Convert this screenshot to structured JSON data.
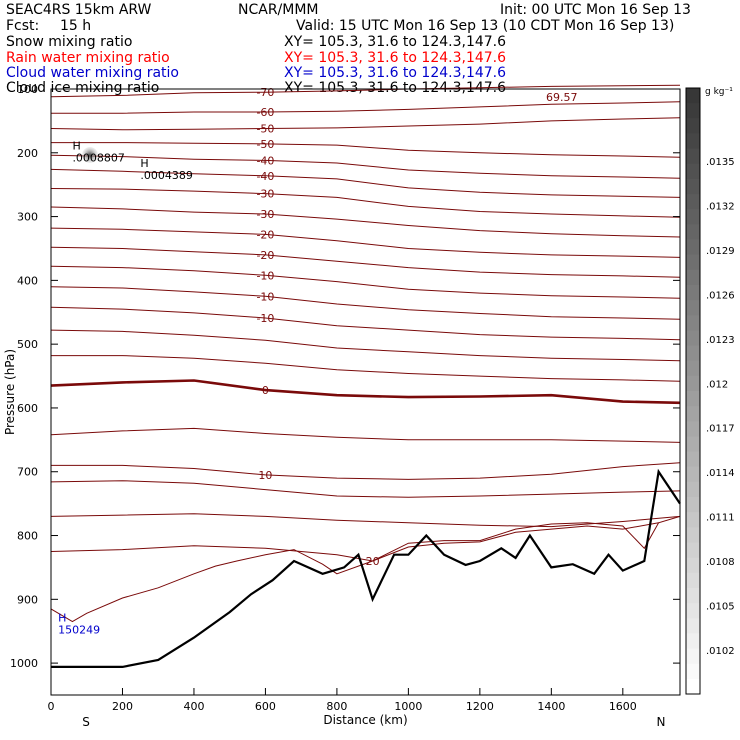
{
  "header": {
    "model": "SEAC4RS 15km ARW",
    "center": "NCAR/MMM",
    "init": "Init: 00 UTC Mon 16 Sep 13",
    "fcst_label": "Fcst:",
    "fcst_value": "15 h",
    "valid": "Valid: 15 UTC Mon 16 Sep 13 (10 CDT Mon 16 Sep 13)"
  },
  "fields": [
    {
      "name": "Snow mixing ratio",
      "xy": "XY= 105.3, 31.6 to 124.3,147.6",
      "color": "#000000"
    },
    {
      "name": "Rain water mixing ratio",
      "xy": "XY= 105.3, 31.6 to 124.3,147.6",
      "color": "#ff0000"
    },
    {
      "name": "Cloud water mixing ratio",
      "xy": "XY= 105.3, 31.6 to 124.3,147.6",
      "color": "#0000cc"
    },
    {
      "name": "Cloud ice mixing ratio",
      "xy": "XY= 105.3, 31.6 to 124.3,147.6",
      "color": "#000000"
    }
  ],
  "colorbar": {
    "unit": "g kg⁻¹",
    "ticks": [
      ".0135",
      ".0132",
      ".0129",
      ".0126",
      ".0123",
      ".012",
      ".0117",
      ".0114",
      ".0111",
      ".0108",
      ".0105",
      ".0102"
    ]
  },
  "chart_data": {
    "type": "line",
    "title": "",
    "xlabel": "Distance (km)",
    "ylabel": "Pressure (hPa)",
    "xlim": [
      0,
      1760
    ],
    "ylim": [
      1050,
      100
    ],
    "xticks": [
      0,
      200,
      400,
      600,
      800,
      1000,
      1200,
      1400,
      1600
    ],
    "yticks": [
      100,
      200,
      300,
      400,
      500,
      600,
      700,
      800,
      900,
      1000
    ],
    "x_end_labels": {
      "left": "S",
      "right": "N"
    },
    "isotherm_color": "#7a0a0a",
    "terrain_color": "#000000",
    "isotherms": [
      {
        "label": "-70",
        "points": [
          [
            0,
            112
          ],
          [
            200,
            110
          ],
          [
            400,
            106
          ],
          [
            600,
            105
          ],
          [
            800,
            103
          ],
          [
            1000,
            100
          ],
          [
            1200,
            98
          ],
          [
            1400,
            96
          ],
          [
            1600,
            95
          ],
          [
            1760,
            94
          ]
        ]
      },
      {
        "label": "-60",
        "points": [
          [
            0,
            138
          ],
          [
            200,
            138
          ],
          [
            400,
            136
          ],
          [
            600,
            136
          ],
          [
            800,
            135
          ],
          [
            1000,
            132
          ],
          [
            1200,
            128
          ],
          [
            1400,
            124
          ],
          [
            1600,
            122
          ],
          [
            1760,
            120
          ]
        ]
      },
      {
        "label": "-50",
        "points": [
          [
            0,
            162
          ],
          [
            200,
            164
          ],
          [
            400,
            163
          ],
          [
            600,
            162
          ],
          [
            800,
            161
          ],
          [
            1000,
            158
          ],
          [
            1200,
            155
          ],
          [
            1400,
            150
          ],
          [
            1600,
            147
          ],
          [
            1760,
            145
          ]
        ]
      },
      {
        "label": "-50",
        "points": [
          [
            0,
            184
          ],
          [
            200,
            184
          ],
          [
            400,
            185
          ],
          [
            600,
            186
          ],
          [
            800,
            188
          ],
          [
            1000,
            196
          ],
          [
            1200,
            200
          ],
          [
            1400,
            203
          ],
          [
            1600,
            205
          ],
          [
            1760,
            207
          ]
        ]
      },
      {
        "label": "-40",
        "points": [
          [
            0,
            204
          ],
          [
            200,
            206
          ],
          [
            400,
            210
          ],
          [
            600,
            212
          ],
          [
            800,
            216
          ],
          [
            1000,
            227
          ],
          [
            1200,
            232
          ],
          [
            1400,
            236
          ],
          [
            1600,
            238
          ],
          [
            1760,
            240
          ]
        ]
      },
      {
        "label": "-40",
        "points": [
          [
            0,
            226
          ],
          [
            200,
            229
          ],
          [
            400,
            233
          ],
          [
            600,
            236
          ],
          [
            800,
            241
          ],
          [
            1000,
            255
          ],
          [
            1200,
            262
          ],
          [
            1400,
            266
          ],
          [
            1600,
            268
          ],
          [
            1760,
            270
          ]
        ]
      },
      {
        "label": "-30",
        "points": [
          [
            0,
            256
          ],
          [
            200,
            257
          ],
          [
            400,
            260
          ],
          [
            600,
            264
          ],
          [
            800,
            270
          ],
          [
            1000,
            284
          ],
          [
            1200,
            292
          ],
          [
            1400,
            296
          ],
          [
            1600,
            299
          ],
          [
            1760,
            301
          ]
        ]
      },
      {
        "label": "-30",
        "points": [
          [
            0,
            285
          ],
          [
            200,
            288
          ],
          [
            400,
            293
          ],
          [
            600,
            296
          ],
          [
            800,
            304
          ],
          [
            1000,
            314
          ],
          [
            1200,
            322
          ],
          [
            1400,
            327
          ],
          [
            1600,
            330
          ],
          [
            1760,
            332
          ]
        ]
      },
      {
        "label": "-20",
        "points": [
          [
            0,
            318
          ],
          [
            200,
            320
          ],
          [
            400,
            324
          ],
          [
            600,
            328
          ],
          [
            800,
            338
          ],
          [
            1000,
            350
          ],
          [
            1200,
            356
          ],
          [
            1400,
            360
          ],
          [
            1600,
            362
          ],
          [
            1760,
            364
          ]
        ]
      },
      {
        "label": "-20",
        "points": [
          [
            0,
            348
          ],
          [
            200,
            350
          ],
          [
            400,
            355
          ],
          [
            600,
            360
          ],
          [
            800,
            370
          ],
          [
            1000,
            380
          ],
          [
            1200,
            387
          ],
          [
            1400,
            391
          ],
          [
            1600,
            393
          ],
          [
            1760,
            395
          ]
        ]
      },
      {
        "label": "-10",
        "points": [
          [
            0,
            378
          ],
          [
            200,
            380
          ],
          [
            400,
            385
          ],
          [
            600,
            392
          ],
          [
            800,
            402
          ],
          [
            1000,
            414
          ],
          [
            1200,
            420
          ],
          [
            1400,
            424
          ],
          [
            1600,
            426
          ],
          [
            1760,
            428
          ]
        ]
      },
      {
        "label": "-10",
        "points": [
          [
            0,
            410
          ],
          [
            200,
            412
          ],
          [
            400,
            418
          ],
          [
            600,
            425
          ],
          [
            800,
            437
          ],
          [
            1000,
            446
          ],
          [
            1200,
            452
          ],
          [
            1400,
            457
          ],
          [
            1600,
            459
          ],
          [
            1760,
            461
          ]
        ]
      },
      {
        "label": "-10",
        "points": [
          [
            0,
            442
          ],
          [
            200,
            445
          ],
          [
            400,
            451
          ],
          [
            600,
            459
          ],
          [
            800,
            471
          ],
          [
            1000,
            478
          ],
          [
            1200,
            485
          ],
          [
            1400,
            489
          ],
          [
            1600,
            491
          ],
          [
            1760,
            493
          ]
        ]
      },
      {
        "label": "",
        "points": [
          [
            0,
            478
          ],
          [
            200,
            480
          ],
          [
            400,
            486
          ],
          [
            600,
            494
          ],
          [
            800,
            506
          ],
          [
            1000,
            512
          ],
          [
            1200,
            518
          ],
          [
            1400,
            522
          ],
          [
            1600,
            524
          ],
          [
            1760,
            526
          ]
        ]
      },
      {
        "label": "",
        "points": [
          [
            0,
            518
          ],
          [
            200,
            518
          ],
          [
            400,
            522
          ],
          [
            600,
            530
          ],
          [
            800,
            540
          ],
          [
            1000,
            546
          ],
          [
            1200,
            550
          ],
          [
            1400,
            554
          ],
          [
            1600,
            556
          ],
          [
            1760,
            558
          ]
        ]
      },
      {
        "label": "0",
        "bold": true,
        "points": [
          [
            0,
            565
          ],
          [
            200,
            560
          ],
          [
            400,
            557
          ],
          [
            600,
            572
          ],
          [
            800,
            580
          ],
          [
            1000,
            583
          ],
          [
            1200,
            582
          ],
          [
            1400,
            580
          ],
          [
            1600,
            590
          ],
          [
            1760,
            592
          ]
        ]
      },
      {
        "label": "",
        "points": [
          [
            0,
            642
          ],
          [
            200,
            636
          ],
          [
            400,
            632
          ],
          [
            600,
            640
          ],
          [
            800,
            646
          ],
          [
            1000,
            650
          ],
          [
            1200,
            650
          ],
          [
            1400,
            650
          ],
          [
            1600,
            652
          ],
          [
            1760,
            654
          ]
        ]
      },
      {
        "label": "10",
        "points": [
          [
            0,
            690
          ],
          [
            200,
            690
          ],
          [
            400,
            695
          ],
          [
            600,
            705
          ],
          [
            800,
            710
          ],
          [
            1000,
            712
          ],
          [
            1200,
            710
          ],
          [
            1400,
            704
          ],
          [
            1600,
            692
          ],
          [
            1760,
            686
          ]
        ]
      },
      {
        "label": "",
        "points": [
          [
            0,
            716
          ],
          [
            200,
            714
          ],
          [
            400,
            718
          ],
          [
            600,
            728
          ],
          [
            800,
            738
          ],
          [
            1000,
            740
          ],
          [
            1200,
            738
          ],
          [
            1400,
            735
          ],
          [
            1600,
            732
          ],
          [
            1760,
            730
          ]
        ]
      },
      {
        "label": "",
        "points": [
          [
            0,
            770
          ],
          [
            200,
            768
          ],
          [
            400,
            766
          ],
          [
            600,
            770
          ],
          [
            800,
            776
          ],
          [
            1000,
            780
          ],
          [
            1200,
            784
          ],
          [
            1400,
            786
          ],
          [
            1600,
            778
          ],
          [
            1760,
            770
          ]
        ]
      },
      {
        "label": "20",
        "points": [
          [
            0,
            825
          ],
          [
            200,
            822
          ],
          [
            400,
            816
          ],
          [
            600,
            820
          ],
          [
            800,
            830
          ],
          [
            900,
            840
          ],
          [
            1000,
            812
          ],
          [
            1100,
            808
          ],
          [
            1200,
            808
          ],
          [
            1300,
            790
          ],
          [
            1400,
            782
          ],
          [
            1500,
            780
          ],
          [
            1600,
            785
          ],
          [
            1660,
            820
          ],
          [
            1700,
            780
          ],
          [
            1760,
            770
          ]
        ]
      },
      {
        "label": "",
        "points": [
          [
            0,
            915
          ],
          [
            60,
            935
          ],
          [
            100,
            922
          ],
          [
            200,
            898
          ],
          [
            300,
            882
          ],
          [
            400,
            860
          ],
          [
            460,
            848
          ],
          [
            520,
            840
          ],
          [
            600,
            830
          ],
          [
            680,
            822
          ],
          [
            760,
            845
          ],
          [
            800,
            860
          ],
          [
            900,
            840
          ],
          [
            1000,
            818
          ],
          [
            1100,
            812
          ],
          [
            1200,
            810
          ],
          [
            1300,
            795
          ],
          [
            1400,
            790
          ],
          [
            1500,
            785
          ],
          [
            1600,
            790
          ],
          [
            1700,
            780
          ]
        ]
      }
    ],
    "terrain": [
      [
        0,
        1006
      ],
      [
        200,
        1006
      ],
      [
        300,
        995
      ],
      [
        400,
        960
      ],
      [
        500,
        920
      ],
      [
        560,
        892
      ],
      [
        620,
        870
      ],
      [
        680,
        840
      ],
      [
        760,
        860
      ],
      [
        820,
        850
      ],
      [
        860,
        830
      ],
      [
        900,
        900
      ],
      [
        960,
        830
      ],
      [
        1000,
        830
      ],
      [
        1050,
        800
      ],
      [
        1100,
        830
      ],
      [
        1160,
        846
      ],
      [
        1200,
        840
      ],
      [
        1260,
        820
      ],
      [
        1300,
        835
      ],
      [
        1340,
        800
      ],
      [
        1400,
        850
      ],
      [
        1460,
        845
      ],
      [
        1520,
        860
      ],
      [
        1560,
        830
      ],
      [
        1600,
        855
      ],
      [
        1660,
        840
      ],
      [
        1700,
        700
      ],
      [
        1760,
        750
      ]
    ],
    "markers": [
      {
        "label": "H",
        "value": ".0008807",
        "x": 60,
        "p": 195,
        "color": "#000000"
      },
      {
        "label": "H",
        "value": ".0004389",
        "x": 250,
        "p": 222,
        "color": "#000000"
      },
      {
        "label": "H",
        "value": "150249",
        "x": 20,
        "p": 935,
        "color": "#0000cc"
      }
    ],
    "max_label": "69.57"
  }
}
